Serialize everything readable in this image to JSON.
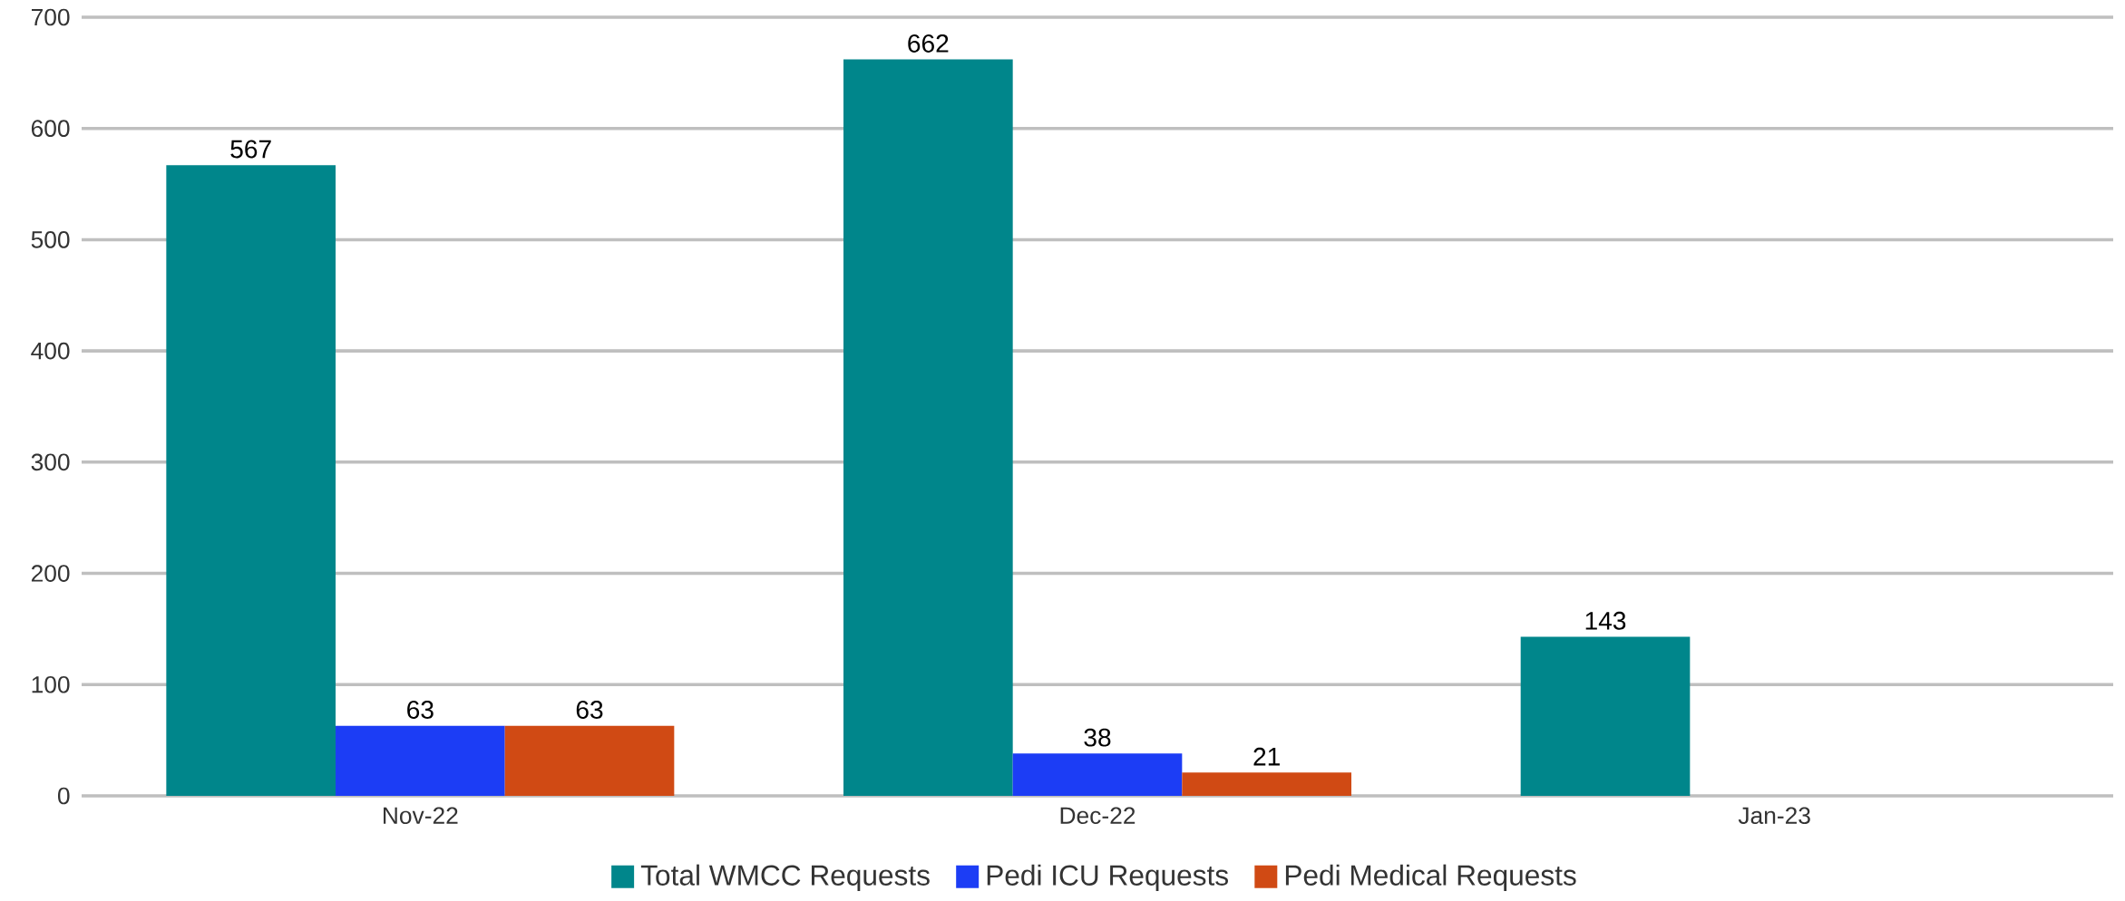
{
  "chart_data": {
    "type": "bar",
    "categories": [
      "Nov-22",
      "Dec-22",
      "Jan-23"
    ],
    "series": [
      {
        "name": "Total WMCC Requests",
        "color": "#00868b",
        "values": [
          567,
          662,
          143
        ]
      },
      {
        "name": "Pedi ICU Requests",
        "color": "#1c3df5",
        "values": [
          63,
          38,
          null
        ]
      },
      {
        "name": "Pedi Medical Requests",
        "color": "#d04a14",
        "values": [
          63,
          21,
          null
        ]
      }
    ],
    "ylim": [
      0,
      700
    ],
    "yticks": [
      0,
      100,
      200,
      300,
      400,
      500,
      600,
      700
    ],
    "grid": "y",
    "legend": "bottom",
    "data_labels": true
  }
}
